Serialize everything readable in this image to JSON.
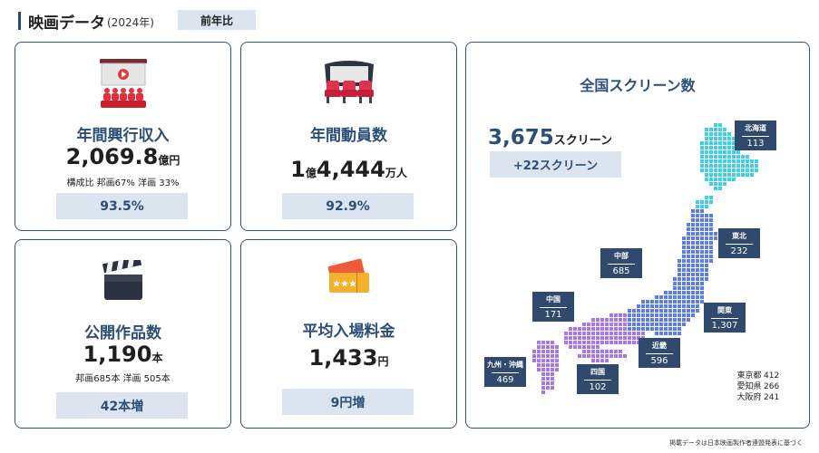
{
  "header": {
    "title": "映画データ",
    "year": "(2024年)",
    "compare_label": "前年比"
  },
  "box_office": {
    "title": "年間興行収入",
    "value": "2,069.8",
    "unit": "億円",
    "breakdown": "構成比 邦画67% 洋画 33%",
    "yoy": "93.5%",
    "icon": "movie-theater-icon"
  },
  "admissions": {
    "title": "年間動員数",
    "value_a": "1",
    "unit_a": "億",
    "value_b": "4,444",
    "unit_b": "万人",
    "yoy": "92.9%",
    "icon": "cinema-seats-icon"
  },
  "releases": {
    "title": "公開作品数",
    "value": "1,190",
    "unit": "本",
    "breakdown": "邦画685本 洋画 505本",
    "yoy": "42本増",
    "icon": "clapperboard-icon"
  },
  "avg_price": {
    "title": "平均入場料金",
    "value": "1,433",
    "unit": "円",
    "yoy": "9円増",
    "icon": "ticket-icon"
  },
  "screens": {
    "title": "全国スクリーン数",
    "total": "3,675",
    "unit": "スクリーン",
    "yoy": "+22スクリーン",
    "regions": [
      {
        "name": "北海道",
        "value": "113"
      },
      {
        "name": "東北",
        "value": "232"
      },
      {
        "name": "中部",
        "value": "685"
      },
      {
        "name": "関東",
        "value": "1,307"
      },
      {
        "name": "中国",
        "value": "171"
      },
      {
        "name": "近畿",
        "value": "596"
      },
      {
        "name": "九州・沖縄",
        "value": "469"
      },
      {
        "name": "四国",
        "value": "102"
      }
    ],
    "prefectures": [
      {
        "name": "東京都",
        "value": "412"
      },
      {
        "name": "愛知県",
        "value": "266"
      },
      {
        "name": "大阪府",
        "value": "241"
      }
    ],
    "map_icon": "japan-map-icon"
  },
  "footnote": "掲載データは日本映画製作者連盟発表に基づく",
  "colors": {
    "accent": "#2c4f78",
    "pill": "#dbe4ef",
    "map_north": "#3fd0e6",
    "map_mid": "#5b7ee0",
    "map_south": "#a878e6"
  }
}
